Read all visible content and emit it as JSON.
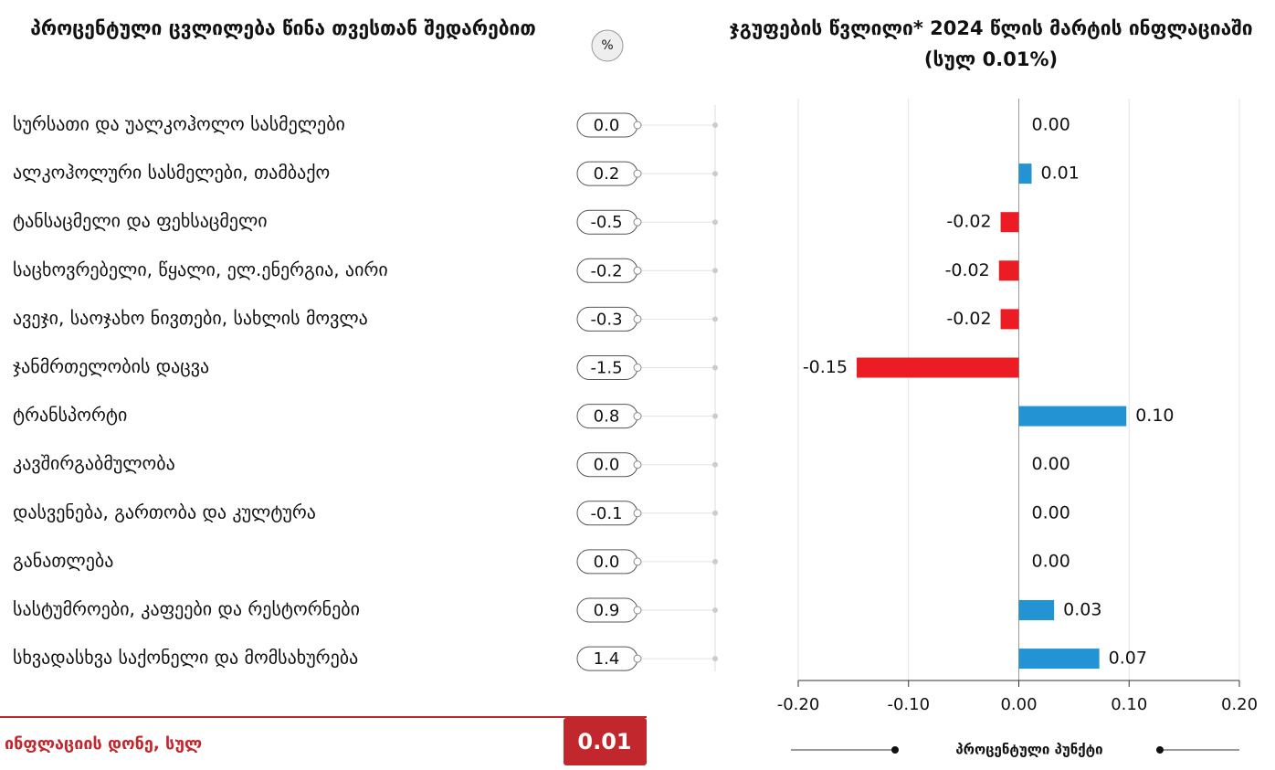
{
  "table": {
    "title": "პროცენტული ცვლილება წინა თვესთან შედარებით",
    "unit": "%",
    "monthly_change": [
      "0.0",
      "0.2",
      "-0.5",
      "-0.2",
      "-0.3",
      "-1.5",
      "0.8",
      "0.0",
      "-0.1",
      "0.0",
      "0.9",
      "1.4"
    ]
  },
  "footer": {
    "label": "ინფლაციის დონე, სულ",
    "value": "0.01"
  },
  "chart_data": {
    "type": "bar",
    "orientation": "horizontal",
    "title": "ჯგუფების წვლილი* 2024 წლის მარტის ინფლაციაში (სულ 0.01%)",
    "x_label": "პროცენტული პუნქტი",
    "categories": [
      "სურსათი და უალკოჰოლო სასმელები",
      "ალკოჰოლური სასმელები, თამბაქო",
      "ტანსაცმელი და ფეხსაცმელი",
      "საცხოვრებელი, წყალი, ელ.ენერგია, აირი",
      "ავეჯი, საოჯახო ნივთები, სახლის მოვლა",
      "ჯანმრთელობის დაცვა",
      "ტრანსპორტი",
      "კავშირგაბმულობა",
      "დასვენება, გართობა და კულტურა",
      "განათლება",
      "სასტუმროები, კაფეები და რესტორნები",
      "სხვადასხვა საქონელი და მომსახურება"
    ],
    "values": [
      0,
      0.0116,
      -0.0165,
      -0.018,
      -0.0165,
      -0.147,
      0.0975,
      0,
      0,
      0,
      0.032,
      0.073
    ],
    "value_labels": [
      "0.00",
      "0.01",
      "-0.02",
      "-0.02",
      "-0.02",
      "-0.15",
      "0.10",
      "0.00",
      "0.00",
      "0.00",
      "0.03",
      "0.07"
    ],
    "positive_color": "#2493d3",
    "negative_color": "#ec1c24",
    "xlim": [
      -0.2,
      0.2
    ],
    "xticks": [
      {
        "value": -0.2,
        "label": "-0.20"
      },
      {
        "value": -0.1,
        "label": "-0.10"
      },
      {
        "value": 0,
        "label": "0.00"
      },
      {
        "value": 0.1,
        "label": "0.10"
      },
      {
        "value": 0.2,
        "label": "0.20"
      }
    ],
    "grid": true
  }
}
